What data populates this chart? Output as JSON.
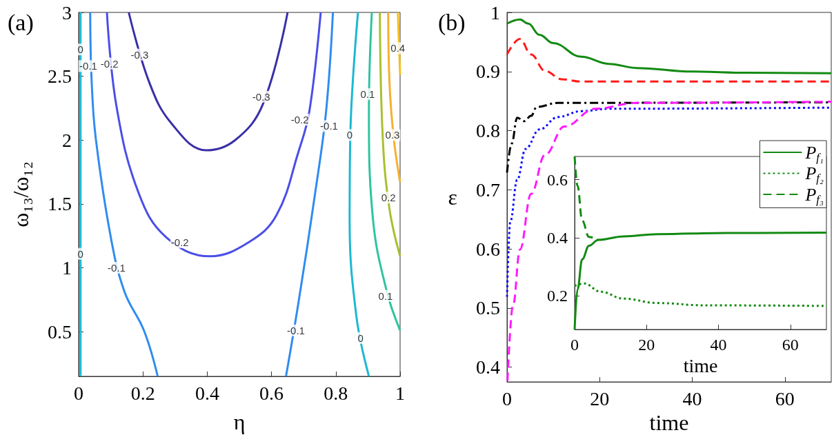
{
  "chart_data": [
    {
      "type": "line",
      "title": "(a)",
      "xlabel": "η",
      "ylabel": "ω₁₃/ω₁₂",
      "xlim": [
        0,
        1
      ],
      "xticks": [
        0,
        0.2,
        0.4,
        0.6,
        0.8,
        1
      ],
      "ylim": [
        0.15,
        3
      ],
      "yticks": [
        0.5,
        1,
        1.5,
        2,
        2.5,
        3
      ],
      "grid": false,
      "legend": false,
      "series": [
        {
          "color": "#1cb8d2",
          "x": [
            0.006,
            0.006
          ],
          "values": [
            0.15,
            3
          ]
        },
        {
          "color": "#2f8cf0",
          "x": [
            0.036,
            0.04,
            0.053,
            0.1,
            0.143,
            0.203,
            0.246
          ],
          "values": [
            3,
            2.49,
            2.02,
            1.24,
            0.81,
            0.51,
            0.15
          ]
        },
        {
          "color": "#4a4ee8",
          "x": [
            0.088,
            0.118,
            0.186,
            0.272,
            0.409,
            0.529,
            0.615,
            0.684,
            0.718,
            0.753
          ],
          "values": [
            3,
            2.26,
            1.59,
            1.24,
            1.09,
            1.2,
            1.41,
            1.91,
            2.23,
            3
          ]
        },
        {
          "color": "#3a2fa8",
          "x": [
            0.156,
            0.22,
            0.289,
            0.397,
            0.487,
            0.573,
            0.65
          ],
          "values": [
            3,
            2.45,
            2.13,
            1.92,
            2.0,
            2.28,
            3
          ]
        },
        {
          "color": "#2f8cf0",
          "x": [
            0.645,
            0.684,
            0.736,
            0.77,
            0.791
          ],
          "values": [
            0.15,
            0.73,
            1.59,
            2.23,
            3
          ]
        },
        {
          "color": "#1cb8d2",
          "x": [
            0.903,
            0.864,
            0.843,
            0.845,
            0.869
          ],
          "values": [
            0.15,
            0.62,
            1.37,
            2.02,
            3
          ]
        },
        {
          "color": "#2ec4a0",
          "x": [
            1.0,
            0.959,
            0.916,
            0.903,
            0.912
          ],
          "values": [
            0.51,
            0.81,
            1.37,
            2.23,
            3
          ]
        },
        {
          "color": "#a8c030",
          "x": [
            1.0,
            0.967,
            0.946,
            0.937
          ],
          "values": [
            1.09,
            1.46,
            2.02,
            3
          ]
        },
        {
          "color": "#f5b030",
          "x": [
            1.0,
            0.98,
            0.967,
            0.963
          ],
          "values": [
            1.67,
            2.02,
            2.45,
            3
          ]
        },
        {
          "color": "#f5c020",
          "x": [
            1.0,
            0.993
          ],
          "values": [
            2.51,
            3
          ]
        }
      ],
      "annotations": [
        {
          "text": "0",
          "x": 0.006,
          "y": 2.71
        },
        {
          "text": "0",
          "x": 0.006,
          "y": 1.11
        },
        {
          "text": "-0.1",
          "x": 0.03,
          "y": 2.58
        },
        {
          "text": "-0.1",
          "x": 0.118,
          "y": 1.0
        },
        {
          "text": "-0.2",
          "x": 0.096,
          "y": 2.6
        },
        {
          "text": "-0.2",
          "x": 0.315,
          "y": 1.2
        },
        {
          "text": "-0.2",
          "x": 0.688,
          "y": 2.16
        },
        {
          "text": "-0.3",
          "x": 0.19,
          "y": 2.67
        },
        {
          "text": "-0.3",
          "x": 0.568,
          "y": 2.34
        },
        {
          "text": "-0.1",
          "x": 0.779,
          "y": 2.11
        },
        {
          "text": "-0.1",
          "x": 0.676,
          "y": 0.51
        },
        {
          "text": "0",
          "x": 0.843,
          "y": 2.04
        },
        {
          "text": "0",
          "x": 0.877,
          "y": 0.45
        },
        {
          "text": "0.1",
          "x": 0.899,
          "y": 2.36
        },
        {
          "text": "0.1",
          "x": 0.955,
          "y": 0.78
        },
        {
          "text": "0.2",
          "x": 0.964,
          "y": 1.55
        },
        {
          "text": "0.3",
          "x": 0.976,
          "y": 2.04
        },
        {
          "text": "0.4",
          "x": 0.993,
          "y": 2.72
        }
      ]
    },
    {
      "type": "line",
      "title": "(b)",
      "xlabel": "time",
      "ylabel": "ε",
      "xlim": [
        0,
        70
      ],
      "xticks": [
        0,
        20,
        40,
        60
      ],
      "ylim": [
        0.375,
        1
      ],
      "yticks": [
        0.4,
        0.5,
        0.6,
        0.7,
        0.8,
        0.9,
        1
      ],
      "grid": false,
      "legend": false,
      "series": [
        {
          "color": "#128a12",
          "line_style": "solid",
          "x": [
            0,
            2.8,
            4.6,
            7,
            10,
            16,
            22,
            28,
            40,
            52,
            70
          ],
          "values": [
            0.981,
            0.988,
            0.981,
            0.962,
            0.948,
            0.925,
            0.913,
            0.906,
            0.9,
            0.898,
            0.897
          ]
        },
        {
          "color": "#ff1a1a",
          "line_style": "dashed",
          "x": [
            0,
            2.8,
            5.2,
            8.2,
            11.8,
            16,
            70
          ],
          "values": [
            0.929,
            0.955,
            0.929,
            0.901,
            0.887,
            0.883,
            0.883
          ]
        },
        {
          "color": "#000000",
          "line_style": "dashdot",
          "x": [
            0,
            1,
            2.2,
            3.7,
            5.2,
            6.4,
            11,
            70
          ],
          "values": [
            0.729,
            0.778,
            0.822,
            0.816,
            0.825,
            0.84,
            0.847,
            0.848
          ]
        },
        {
          "color": "#0a0aff",
          "line_style": "dotted",
          "x": [
            0,
            0.7,
            2.2,
            4,
            7,
            11,
            16,
            22,
            70
          ],
          "values": [
            0.519,
            0.646,
            0.717,
            0.769,
            0.802,
            0.823,
            0.833,
            0.837,
            0.839
          ]
        },
        {
          "color": "#ff1aff",
          "line_style": "dashed",
          "x": [
            0.1,
            1.3,
            2.8,
            5.2,
            8.2,
            12.4,
            19,
            28,
            70
          ],
          "values": [
            0.377,
            0.505,
            0.599,
            0.693,
            0.759,
            0.807,
            0.837,
            0.847,
            0.849
          ]
        }
      ]
    },
    {
      "type": "line",
      "xlabel": "time",
      "xlim": [
        0,
        70
      ],
      "xticks": [
        0,
        20,
        40,
        60
      ],
      "ylim": [
        0.085,
        0.68
      ],
      "yticks": [
        0.2,
        0.4,
        0.6
      ],
      "grid": false,
      "legend": "top right",
      "series": [
        {
          "name": "P$_{f₁}$",
          "color": "#128a12",
          "line_style": "solid",
          "x": [
            0,
            0.8,
            2.1,
            4,
            6.6,
            13.6,
            23,
            42.4,
            70
          ],
          "values": [
            0.085,
            0.223,
            0.326,
            0.373,
            0.393,
            0.405,
            0.413,
            0.417,
            0.418
          ]
        },
        {
          "name": "P$_{f₂}$",
          "color": "#128a12",
          "line_style": "dotted",
          "x": [
            0,
            2.7,
            7.2,
            13.6,
            23,
            36,
            70
          ],
          "values": [
            0.235,
            0.243,
            0.215,
            0.191,
            0.176,
            0.168,
            0.166
          ]
        },
        {
          "name": "P$_{f₃}$",
          "color": "#128a12",
          "line_style": "dashed",
          "x": [
            0,
            0.8,
            2.1,
            4,
            6.6
          ],
          "values": [
            0.68,
            0.579,
            0.46,
            0.403,
            0.393
          ]
        }
      ]
    }
  ]
}
